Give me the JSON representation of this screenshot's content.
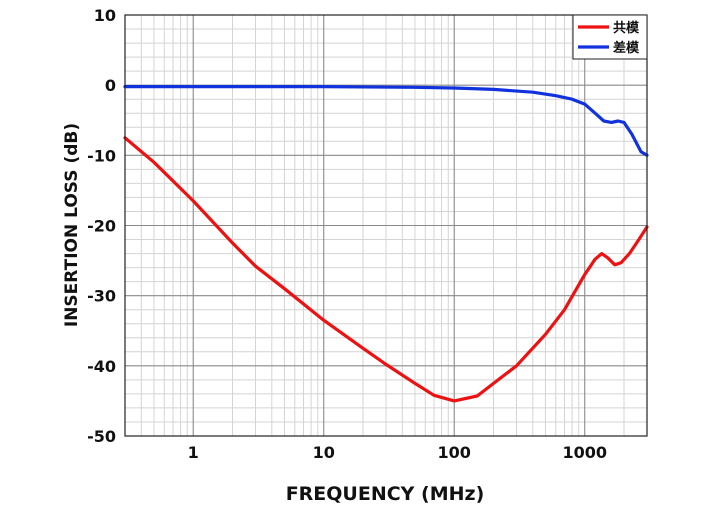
{
  "chart_data": {
    "type": "line",
    "xscale": "log",
    "xlim": [
      0.3,
      3000
    ],
    "ylim": [
      -50,
      10
    ],
    "xlabel": "FREQUENCY (MHz)",
    "ylabel": "INSERTION LOSS (dB)",
    "grid": true,
    "legend_position": "top-right",
    "x_ticks": [
      {
        "value": 1,
        "label": "1"
      },
      {
        "value": 10,
        "label": "10"
      },
      {
        "value": 100,
        "label": "100"
      },
      {
        "value": 1000,
        "label": "1000"
      }
    ],
    "y_ticks": [
      {
        "value": 10,
        "label": "10"
      },
      {
        "value": 0,
        "label": "0"
      },
      {
        "value": -10,
        "label": "-10"
      },
      {
        "value": -20,
        "label": "-20"
      },
      {
        "value": -30,
        "label": "-30"
      },
      {
        "value": -40,
        "label": "-40"
      },
      {
        "value": -50,
        "label": "-50"
      }
    ],
    "series": [
      {
        "name": "共模",
        "color": "#ee1111",
        "points": [
          [
            0.3,
            -7.5
          ],
          [
            0.5,
            -11
          ],
          [
            1,
            -16.5
          ],
          [
            2,
            -22.5
          ],
          [
            3,
            -25.8
          ],
          [
            5,
            -29
          ],
          [
            10,
            -33.5
          ],
          [
            20,
            -37.5
          ],
          [
            30,
            -39.8
          ],
          [
            50,
            -42.5
          ],
          [
            70,
            -44.2
          ],
          [
            100,
            -45
          ],
          [
            150,
            -44.3
          ],
          [
            200,
            -42.5
          ],
          [
            300,
            -40
          ],
          [
            500,
            -35.5
          ],
          [
            700,
            -32
          ],
          [
            1000,
            -27
          ],
          [
            1200,
            -24.8
          ],
          [
            1350,
            -24
          ],
          [
            1500,
            -24.6
          ],
          [
            1700,
            -25.6
          ],
          [
            1900,
            -25.3
          ],
          [
            2200,
            -24
          ],
          [
            2600,
            -22
          ],
          [
            3000,
            -20.2
          ]
        ]
      },
      {
        "name": "差模",
        "color": "#1133dd",
        "points": [
          [
            0.3,
            -0.2
          ],
          [
            1,
            -0.2
          ],
          [
            10,
            -0.2
          ],
          [
            50,
            -0.3
          ],
          [
            100,
            -0.4
          ],
          [
            200,
            -0.6
          ],
          [
            400,
            -1
          ],
          [
            600,
            -1.5
          ],
          [
            800,
            -2
          ],
          [
            1000,
            -2.7
          ],
          [
            1200,
            -4
          ],
          [
            1400,
            -5.1
          ],
          [
            1600,
            -5.3
          ],
          [
            1800,
            -5.1
          ],
          [
            2000,
            -5.3
          ],
          [
            2300,
            -7
          ],
          [
            2700,
            -9.5
          ],
          [
            3000,
            -10
          ]
        ]
      }
    ]
  }
}
